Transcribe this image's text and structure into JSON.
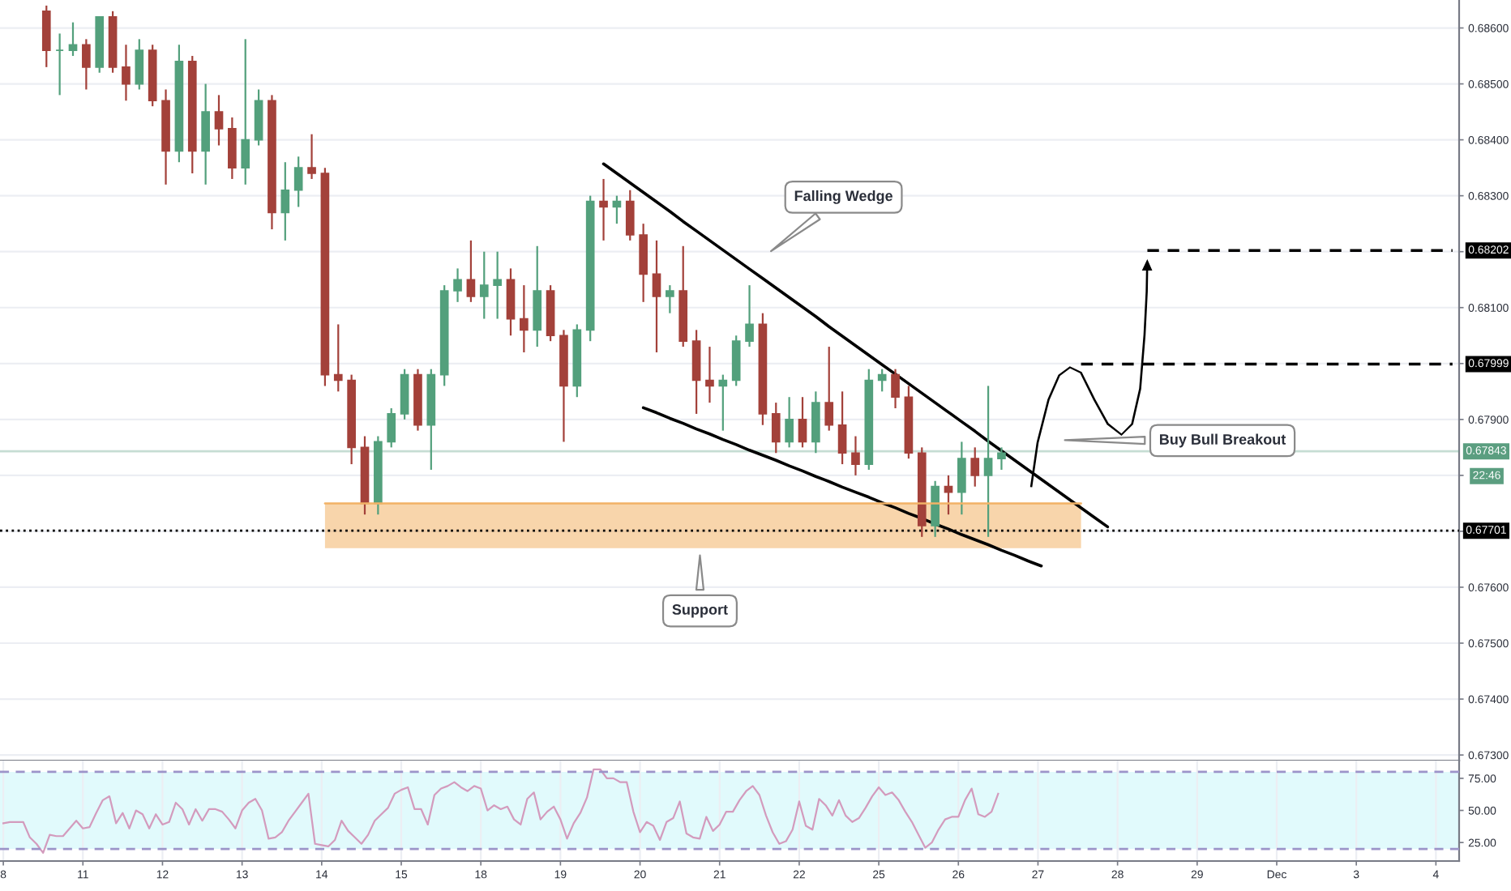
{
  "chart_data": [
    {
      "type": "candlestick",
      "categories": [
        null,
        null,
        null,
        null,
        null,
        null,
        null,
        null,
        null,
        null,
        null,
        null,
        null,
        null,
        null,
        null,
        null,
        null,
        null,
        null,
        null,
        null,
        null,
        null,
        null,
        null,
        null,
        null,
        null,
        null,
        null,
        null,
        null,
        null,
        null,
        null,
        null,
        null,
        null,
        null,
        null,
        null,
        null,
        null,
        null,
        null,
        null,
        null,
        null,
        null,
        null,
        null,
        null,
        null,
        null,
        null,
        null,
        null,
        null,
        null,
        null,
        null,
        null,
        null,
        null,
        null,
        null,
        null,
        null,
        null,
        null,
        null,
        null,
        null,
        null,
        null,
        null,
        null,
        null,
        null,
        null,
        null,
        null,
        null,
        null,
        null,
        null,
        null,
        null,
        null,
        null,
        null,
        null,
        null,
        null,
        null,
        null,
        null,
        null,
        null,
        null,
        null,
        null,
        null,
        null,
        null,
        null,
        null,
        null,
        null
      ],
      "ohlc": [
        null,
        null,
        null,
        [
          0.6863,
          0.6864,
          0.6853,
          0.6856
        ],
        [
          0.6856,
          0.6859,
          0.6848,
          0.6856
        ],
        [
          0.6856,
          0.6861,
          0.6855,
          0.6857
        ],
        [
          0.6857,
          0.6858,
          0.6849,
          0.6853
        ],
        [
          0.6853,
          0.6862,
          0.6852,
          0.6862
        ],
        [
          0.6862,
          0.6863,
          0.6852,
          0.6853
        ],
        [
          0.6853,
          0.6857,
          0.6847,
          0.685
        ],
        [
          0.685,
          0.6858,
          0.6849,
          0.6856
        ],
        [
          0.6856,
          0.6857,
          0.6846,
          0.6847
        ],
        [
          0.6847,
          0.6849,
          0.6832,
          0.6838
        ],
        [
          0.6838,
          0.6857,
          0.6836,
          0.6854
        ],
        [
          0.6854,
          0.6855,
          0.6834,
          0.6838
        ],
        [
          0.6838,
          0.685,
          0.6832,
          0.6845
        ],
        [
          0.6845,
          0.6848,
          0.6839,
          0.6842
        ],
        [
          0.6842,
          0.6844,
          0.6833,
          0.6835
        ],
        [
          0.6835,
          0.6858,
          0.6832,
          0.684
        ],
        [
          0.684,
          0.6849,
          0.6839,
          0.6847
        ],
        [
          0.6847,
          0.6848,
          0.6824,
          0.6827
        ],
        [
          0.6827,
          0.6836,
          0.6822,
          0.6831
        ],
        [
          0.6831,
          0.6837,
          0.6828,
          0.6835
        ],
        [
          0.6835,
          0.6841,
          0.6833,
          0.6834
        ],
        [
          0.6834,
          0.6835,
          0.6796,
          0.6798
        ],
        [
          0.6798,
          0.6807,
          0.6795,
          0.6797
        ],
        [
          0.6797,
          0.6798,
          0.6782,
          0.6785
        ],
        [
          0.6785,
          0.6787,
          0.6773,
          0.6775
        ],
        [
          0.6775,
          0.6787,
          0.6773,
          0.6786
        ],
        [
          0.6786,
          0.6792,
          0.6785,
          0.6791
        ],
        [
          0.6791,
          0.6799,
          0.679,
          0.6798
        ],
        [
          0.6798,
          0.6799,
          0.6788,
          0.6789
        ],
        [
          0.6789,
          0.6799,
          0.6781,
          0.6798
        ],
        [
          0.6798,
          0.6814,
          0.6796,
          0.6813
        ],
        [
          0.6813,
          0.6817,
          0.6811,
          0.6815
        ],
        [
          0.6815,
          0.6822,
          0.6811,
          0.6812
        ],
        [
          0.6812,
          0.682,
          0.6808,
          0.6814
        ],
        [
          0.6814,
          0.682,
          0.6808,
          0.6815
        ],
        [
          0.6815,
          0.6817,
          0.6805,
          0.6808
        ],
        [
          0.6808,
          0.6814,
          0.6802,
          0.6806
        ],
        [
          0.6806,
          0.6821,
          0.6803,
          0.6813
        ],
        [
          0.6813,
          0.6814,
          0.6804,
          0.6805
        ],
        [
          0.6805,
          0.6806,
          0.6786,
          0.6796
        ],
        [
          0.6796,
          0.6807,
          0.6794,
          0.6806
        ],
        [
          0.6806,
          0.683,
          0.6804,
          0.6829
        ],
        [
          0.6829,
          0.6833,
          0.6822,
          0.6828
        ],
        [
          0.6828,
          0.683,
          0.6825,
          0.6829
        ],
        [
          0.6829,
          0.6831,
          0.6822,
          0.6823
        ],
        [
          0.6823,
          0.6825,
          0.6811,
          0.6816
        ],
        [
          0.6816,
          0.6822,
          0.6802,
          0.6812
        ],
        [
          0.6812,
          0.6814,
          0.6809,
          0.6813
        ],
        [
          0.6813,
          0.6821,
          0.6803,
          0.6804
        ],
        [
          0.6804,
          0.6806,
          0.6791,
          0.6797
        ],
        [
          0.6797,
          0.6803,
          0.6793,
          0.6796
        ],
        [
          0.6796,
          0.6798,
          0.6788,
          0.6797
        ],
        [
          0.6797,
          0.6805,
          0.6796,
          0.6804
        ],
        [
          0.6804,
          0.6814,
          0.6803,
          0.6807
        ],
        [
          0.6807,
          0.6809,
          0.6789,
          0.6791
        ],
        [
          0.6791,
          0.6793,
          0.6784,
          0.6786
        ],
        [
          0.6786,
          0.6794,
          0.6785,
          0.679
        ],
        [
          0.679,
          0.6794,
          0.6785,
          0.6786
        ],
        [
          0.6786,
          0.6795,
          0.6784,
          0.6793
        ],
        [
          0.6793,
          0.6803,
          0.6788,
          0.6789
        ],
        [
          0.6789,
          0.6795,
          0.6782,
          0.6784
        ],
        [
          0.6784,
          0.6787,
          0.678,
          0.6782
        ],
        [
          0.6782,
          0.6799,
          0.6781,
          0.6797
        ],
        [
          0.6797,
          0.6799,
          0.6795,
          0.6798
        ],
        [
          0.6798,
          0.6799,
          0.6792,
          0.6794
        ],
        [
          0.6794,
          0.6796,
          0.6783,
          0.6784
        ],
        [
          0.6784,
          0.6785,
          0.6769,
          0.6771
        ],
        [
          0.6771,
          0.6779,
          0.6769,
          0.6778
        ],
        [
          0.6778,
          0.678,
          0.6773,
          0.6777
        ],
        [
          0.6777,
          0.6786,
          0.6773,
          0.6783
        ],
        [
          0.6783,
          0.6785,
          0.6778,
          0.678
        ],
        [
          0.678,
          0.6796,
          0.6769,
          0.6783
        ],
        [
          0.6783,
          0.6785,
          0.6781,
          0.6784
        ],
        null,
        null,
        null,
        null,
        null,
        null,
        null,
        null,
        null,
        null,
        null,
        null,
        null,
        null,
        null,
        null,
        null,
        null,
        null,
        null,
        null,
        null,
        null,
        null,
        null,
        null,
        null,
        null,
        null,
        null,
        null,
        null,
        null,
        null
      ],
      "colors": [
        null,
        null,
        null,
        "#a3413a",
        "#53a07c",
        "#53a07c",
        "#a3413a",
        "#53a07c",
        "#a3413a",
        "#a3413a",
        "#53a07c",
        "#a3413a",
        "#a3413a",
        "#53a07c",
        "#a3413a",
        "#53a07c",
        "#a3413a",
        "#a3413a",
        "#53a07c",
        "#53a07c",
        "#a3413a",
        "#53a07c",
        "#53a07c",
        "#a3413a",
        "#a3413a",
        "#a3413a",
        "#a3413a",
        "#a3413a",
        "#53a07c",
        "#53a07c",
        "#53a07c",
        "#a3413a",
        "#53a07c",
        "#53a07c",
        "#53a07c",
        "#a3413a",
        "#53a07c",
        "#53a07c",
        "#a3413a",
        "#a3413a",
        "#53a07c",
        "#a3413a",
        "#a3413a",
        "#53a07c",
        "#53a07c",
        "#a3413a",
        "#53a07c",
        "#a3413a",
        "#a3413a",
        "#a3413a",
        "#53a07c",
        "#a3413a",
        "#a3413a",
        "#a3413a",
        "#53a07c",
        "#53a07c",
        "#53a07c",
        "#a3413a",
        "#a3413a",
        "#53a07c",
        "#a3413a",
        "#53a07c",
        "#a3413a",
        "#a3413a",
        "#a3413a",
        "#53a07c",
        "#53a07c",
        "#a3413a",
        "#a3413a",
        "#a3413a",
        "#53a07c",
        "#a3413a",
        "#53a07c",
        "#a3413a",
        "#53a07c",
        "#53a07c",
        null,
        null,
        null,
        null,
        null,
        null,
        null,
        null,
        null,
        null,
        null,
        null,
        null,
        null,
        null,
        null,
        null,
        null,
        null,
        null,
        null,
        null,
        null,
        null,
        null,
        null,
        null,
        null,
        null,
        null,
        null,
        null,
        null,
        null
      ],
      "series": [
        {
          "type": "line",
          "color": "#000000",
          "values": [
            null,
            null,
            null,
            null,
            null,
            null,
            null,
            null,
            null,
            null,
            null,
            null,
            null,
            null,
            null,
            null,
            null,
            null,
            null,
            null,
            null,
            null,
            null,
            null,
            null,
            null,
            null,
            null,
            null,
            null,
            null,
            null,
            null,
            null,
            null,
            null,
            null,
            null,
            null,
            null,
            null,
            null,
            null,
            null,
            null,
            0.68357,
            0.6834,
            0.68323,
            0.68306,
            0.68289,
            0.68272,
            0.68254,
            0.68237,
            0.6822,
            0.68203,
            0.68186,
            0.68169,
            0.68152,
            0.68135,
            0.68118,
            0.68101,
            0.68084,
            0.68066,
            0.68049,
            0.68032,
            0.68015,
            0.67998,
            0.67981,
            0.67964,
            0.67947,
            0.6793,
            0.67913,
            0.67896,
            0.67879,
            0.67861,
            0.67844,
            0.67827,
            0.6781,
            0.67793,
            0.67776,
            0.67759,
            0.67742,
            0.67725,
            0.67708,
            null,
            null,
            null,
            null,
            null,
            null,
            null,
            null,
            null,
            null,
            null,
            null,
            null,
            null,
            null,
            null,
            null,
            null,
            null,
            null,
            null,
            null,
            null,
            null,
            null,
            null
          ]
        },
        {
          "type": "line",
          "color": "#000000",
          "values": [
            null,
            null,
            null,
            null,
            null,
            null,
            null,
            null,
            null,
            null,
            null,
            null,
            null,
            null,
            null,
            null,
            null,
            null,
            null,
            null,
            null,
            null,
            null,
            null,
            null,
            null,
            null,
            null,
            null,
            null,
            null,
            null,
            null,
            null,
            null,
            null,
            null,
            null,
            null,
            null,
            null,
            null,
            null,
            null,
            null,
            null,
            null,
            null,
            0.67921,
            0.67912,
            0.67902,
            0.67893,
            0.67883,
            0.67874,
            0.67864,
            0.67855,
            0.67845,
            0.67836,
            0.67827,
            0.67817,
            0.67808,
            0.67798,
            0.67789,
            0.67779,
            0.6777,
            0.67761,
            0.67751,
            0.67742,
            0.67732,
            0.67723,
            0.67713,
            0.67704,
            0.67694,
            0.67685,
            0.67676,
            0.67666,
            0.67657,
            0.67647,
            0.67638,
            null,
            null,
            null,
            null,
            null,
            null,
            null,
            null,
            null,
            null,
            null,
            null,
            null,
            null,
            null,
            null,
            null,
            null,
            null,
            null,
            null,
            null,
            null,
            null,
            null,
            null,
            null,
            null,
            null,
            null,
            null
          ]
        },
        {
          "type": "line",
          "color": "#f2b266",
          "values": [
            null,
            null,
            null,
            null,
            null,
            null,
            null,
            null,
            null,
            null,
            null,
            null,
            null,
            null,
            null,
            null,
            null,
            null,
            null,
            null,
            null,
            null,
            null,
            null,
            0.6775,
            0.6775,
            0.6775,
            0.6775,
            0.6775,
            0.6775,
            0.6775,
            0.6775,
            0.6775,
            0.6775,
            0.6775,
            0.6775,
            0.6775,
            0.6775,
            0.6775,
            0.6775,
            0.6775,
            0.6775,
            0.6775,
            0.6775,
            0.6775,
            0.6775,
            0.6775,
            0.6775,
            0.6775,
            0.6775,
            0.6775,
            0.6775,
            0.6775,
            0.6775,
            0.6775,
            0.6775,
            0.6775,
            0.6775,
            0.6775,
            0.6775,
            0.6775,
            0.6775,
            0.6775,
            0.6775,
            0.6775,
            0.6775,
            0.6775,
            0.6775,
            0.6775,
            0.6775,
            0.6775,
            0.6775,
            0.6775,
            0.6775,
            0.6775,
            0.6775,
            0.6775,
            0.6775,
            0.6775,
            0.6775,
            0.6775,
            0.6775,
            null,
            null,
            null,
            null,
            null,
            null,
            null,
            null,
            null,
            null,
            null,
            null,
            null,
            null,
            null,
            null,
            null,
            null,
            null,
            null,
            null,
            null,
            null,
            null,
            null,
            null,
            null,
            null
          ],
          "upper": [
            null,
            null,
            null,
            null,
            null,
            null,
            null,
            null,
            null,
            null,
            null,
            null,
            null,
            null,
            null,
            null,
            null,
            null,
            null,
            null,
            null,
            null,
            null,
            null,
            0.6775,
            0.6775,
            0.6775,
            0.6775,
            0.6775,
            0.6775,
            0.6775,
            0.6775,
            0.6775,
            0.6775,
            0.6775,
            0.6775,
            0.6775,
            0.6775,
            0.6775,
            0.6775,
            0.6775,
            0.6775,
            0.6775,
            0.6775,
            0.6775,
            0.6775,
            0.6775,
            0.6775,
            0.6775,
            0.6775,
            0.6775,
            0.6775,
            0.6775,
            0.6775,
            0.6775,
            0.6775,
            0.6775,
            0.6775,
            0.6775,
            0.6775,
            0.6775,
            0.6775,
            0.6775,
            0.6775,
            0.6775,
            0.6775,
            0.6775,
            0.6775,
            0.6775,
            0.6775,
            0.6775,
            0.6775,
            0.6775,
            0.6775,
            0.6775,
            0.6775,
            0.6775,
            0.6775,
            0.6775,
            0.6775,
            0.6775,
            0.6775,
            null,
            null,
            null,
            null,
            null,
            null,
            null,
            null,
            null,
            null,
            null,
            null,
            null,
            null,
            null,
            null,
            null,
            null,
            null,
            null,
            null,
            null,
            null,
            null,
            null,
            null,
            null,
            null
          ],
          "lower": [
            null,
            null,
            null,
            null,
            null,
            null,
            null,
            null,
            null,
            null,
            null,
            null,
            null,
            null,
            null,
            null,
            null,
            null,
            null,
            null,
            null,
            null,
            null,
            null,
            0.6767,
            0.6767,
            0.6767,
            0.6767,
            0.6767,
            0.6767,
            0.6767,
            0.6767,
            0.6767,
            0.6767,
            0.6767,
            0.6767,
            0.6767,
            0.6767,
            0.6767,
            0.6767,
            0.6767,
            0.6767,
            0.6767,
            0.6767,
            0.6767,
            0.6767,
            0.6767,
            0.6767,
            0.6767,
            0.6767,
            0.6767,
            0.6767,
            0.6767,
            0.6767,
            0.6767,
            0.6767,
            0.6767,
            0.6767,
            0.6767,
            0.6767,
            0.6767,
            0.6767,
            0.6767,
            0.6767,
            0.6767,
            0.6767,
            0.6767,
            0.6767,
            0.6767,
            0.6767,
            0.6767,
            0.6767,
            0.6767,
            0.6767,
            0.6767,
            0.6767,
            0.6767,
            0.6767,
            0.6767,
            0.6767,
            0.6767,
            0.6767,
            null,
            null,
            null,
            null,
            null,
            null,
            null,
            null,
            null,
            null,
            null,
            null,
            null,
            null,
            null,
            null,
            null,
            null,
            null,
            null,
            null,
            null,
            null,
            null,
            null,
            null,
            null,
            null
          ]
        },
        {
          "type": "line",
          "color": "#000000",
          "line_style": "dashed",
          "values": [
            null,
            null,
            null,
            null,
            null,
            null,
            null,
            null,
            null,
            null,
            null,
            null,
            null,
            null,
            null,
            null,
            null,
            null,
            null,
            null,
            null,
            null,
            null,
            null,
            null,
            null,
            null,
            null,
            null,
            null,
            null,
            null,
            null,
            null,
            null,
            null,
            null,
            null,
            null,
            null,
            null,
            null,
            null,
            null,
            null,
            null,
            null,
            null,
            null,
            null,
            null,
            null,
            null,
            null,
            null,
            null,
            null,
            null,
            null,
            null,
            null,
            null,
            null,
            null,
            null,
            null,
            null,
            null,
            null,
            null,
            null,
            null,
            null,
            null,
            null,
            null,
            null,
            null,
            null,
            null,
            null,
            0.67999,
            0.67999,
            0.67999,
            0.67999,
            0.67999,
            0.67999,
            0.67999,
            0.67999,
            0.67999,
            0.67999,
            0.67999,
            0.67999,
            0.67999,
            0.67999,
            0.67999,
            0.67999,
            0.67999,
            0.67999,
            0.67999,
            0.67999,
            0.67999,
            0.67999,
            0.67999,
            0.67999,
            0.67999,
            0.67999,
            0.67999,
            0.67999,
            0.67999
          ],
          "value_labels": [
            null,
            null,
            null,
            null,
            null,
            null,
            null,
            null,
            null,
            null,
            null,
            null,
            null,
            null,
            null,
            null,
            null,
            null,
            null,
            null,
            null,
            null,
            null,
            null,
            null,
            null,
            null,
            null,
            null,
            null,
            null,
            null,
            null,
            null,
            null,
            null,
            null,
            null,
            null,
            null,
            null,
            null,
            null,
            null,
            null,
            null,
            null,
            null,
            null,
            null,
            null,
            null,
            null,
            null,
            null,
            null,
            null,
            null,
            null,
            null,
            null,
            null,
            null,
            null,
            null,
            null,
            null,
            null,
            null,
            null,
            null,
            null,
            null,
            null,
            null,
            null,
            null,
            null,
            null,
            null,
            null,
            null,
            null,
            null,
            null,
            null,
            null,
            null,
            null,
            null,
            null,
            null,
            null,
            null,
            null,
            null,
            null,
            null,
            null,
            null,
            null,
            null,
            null,
            null,
            null,
            null,
            null,
            null,
            null,
            "0.67999"
          ]
        },
        {
          "type": "line",
          "color": "#000000",
          "line_style": "dashed",
          "values": [
            null,
            null,
            null,
            null,
            null,
            null,
            null,
            null,
            null,
            null,
            null,
            null,
            null,
            null,
            null,
            null,
            null,
            null,
            null,
            null,
            null,
            null,
            null,
            null,
            null,
            null,
            null,
            null,
            null,
            null,
            null,
            null,
            null,
            null,
            null,
            null,
            null,
            null,
            null,
            null,
            null,
            null,
            null,
            null,
            null,
            null,
            null,
            null,
            null,
            null,
            null,
            null,
            null,
            null,
            null,
            null,
            null,
            null,
            null,
            null,
            null,
            null,
            null,
            null,
            null,
            null,
            null,
            null,
            null,
            null,
            null,
            null,
            null,
            null,
            null,
            null,
            null,
            null,
            null,
            null,
            null,
            null,
            null,
            null,
            null,
            null,
            0.68202,
            0.68202,
            0.68202,
            0.68202,
            0.68202,
            0.68202,
            0.68202,
            0.68202,
            0.68202,
            0.68202,
            0.68202,
            0.68202,
            0.68202,
            0.68202,
            0.68202,
            0.68202,
            0.68202,
            0.68202,
            0.68202,
            0.68202,
            0.68202,
            0.68202,
            0.68202,
            0.68202
          ],
          "value_labels": [
            null,
            null,
            null,
            null,
            null,
            null,
            null,
            null,
            null,
            null,
            null,
            null,
            null,
            null,
            null,
            null,
            null,
            null,
            null,
            null,
            null,
            null,
            null,
            null,
            null,
            null,
            null,
            null,
            null,
            null,
            null,
            null,
            null,
            null,
            null,
            null,
            null,
            null,
            null,
            null,
            null,
            null,
            null,
            null,
            null,
            null,
            null,
            null,
            null,
            null,
            null,
            null,
            null,
            null,
            null,
            null,
            null,
            null,
            null,
            null,
            null,
            null,
            null,
            null,
            null,
            null,
            null,
            null,
            null,
            null,
            null,
            null,
            null,
            null,
            null,
            null,
            null,
            null,
            null,
            null,
            null,
            null,
            null,
            null,
            null,
            null,
            null,
            null,
            null,
            null,
            null,
            null,
            null,
            null,
            null,
            null,
            null,
            null,
            null,
            null,
            null,
            null,
            null,
            null,
            null,
            null,
            null,
            null,
            null,
            "0.68202"
          ]
        }
      ],
      "ref_lines": [
        {
          "axis": "y",
          "value": 0.67701,
          "label": "0.67701",
          "color": "#000000",
          "line_style": "dotted"
        },
        {
          "axis": "y",
          "value": 0.67843,
          "label": "0.67843",
          "color": "#5b9e80",
          "line_style": "solid"
        }
      ],
      "annotations": [
        "Falling Wedge",
        "Support",
        "Buy Bull Breakout",
        "22:46"
      ],
      "ylim": [
        0.6729,
        0.6865
      ],
      "yticks": [
        {
          "value": 0.673,
          "label": "0.67300"
        },
        {
          "value": 0.674,
          "label": "0.67400"
        },
        {
          "value": 0.675,
          "label": "0.67500"
        },
        {
          "value": 0.676,
          "label": "0.67600"
        },
        {
          "value": 0.677,
          "label": null
        },
        {
          "value": 0.678,
          "label": null
        },
        {
          "value": 0.679,
          "label": "0.67900"
        },
        {
          "value": 0.68,
          "label": null
        },
        {
          "value": 0.681,
          "label": "0.68100"
        },
        {
          "value": 0.682,
          "label": null
        },
        {
          "value": 0.683,
          "label": "0.68300"
        },
        {
          "value": 0.684,
          "label": "0.68400"
        },
        {
          "value": 0.685,
          "label": "0.68500"
        },
        {
          "value": 0.686,
          "label": "0.68600"
        }
      ],
      "grid": "y"
    },
    {
      "type": "line",
      "categories": [
        "8",
        null,
        null,
        null,
        null,
        null,
        null,
        null,
        null,
        null,
        null,
        null,
        "11",
        null,
        null,
        null,
        null,
        null,
        null,
        null,
        null,
        null,
        null,
        null,
        "12",
        null,
        null,
        null,
        null,
        null,
        null,
        null,
        null,
        null,
        null,
        null,
        "13",
        null,
        null,
        null,
        null,
        null,
        null,
        null,
        null,
        null,
        null,
        null,
        "14",
        null,
        null,
        null,
        null,
        null,
        null,
        null,
        null,
        null,
        null,
        null,
        "15",
        null,
        null,
        null,
        null,
        null,
        null,
        null,
        null,
        null,
        null,
        null,
        "18",
        null,
        null,
        null,
        null,
        null,
        null,
        null,
        null,
        null,
        null,
        null,
        "19",
        null,
        null,
        null,
        null,
        null,
        null,
        null,
        null,
        null,
        null,
        null,
        "20",
        null,
        null,
        null,
        null,
        null,
        null,
        null,
        null,
        null,
        null,
        null,
        "21",
        null,
        null,
        null,
        null,
        null,
        null,
        null,
        null,
        null,
        null,
        null,
        "22",
        null,
        null,
        null,
        null,
        null,
        null,
        null,
        null,
        null,
        null,
        null,
        "25",
        null,
        null,
        null,
        null,
        null,
        null,
        null,
        null,
        null,
        null,
        null,
        "26",
        null,
        null,
        null,
        null,
        null,
        null,
        null,
        null,
        null,
        null,
        null,
        "27",
        null,
        null,
        null,
        null,
        null,
        null,
        null,
        null,
        null,
        null,
        null,
        "28",
        null,
        null,
        null,
        null,
        null,
        null,
        null,
        null,
        null,
        null,
        null,
        "29",
        null,
        null,
        null,
        null,
        null,
        null,
        null,
        null,
        null,
        null,
        null,
        "Dec",
        null,
        null,
        null,
        null,
        null,
        null,
        null,
        null,
        null,
        null,
        null,
        "3",
        null,
        null,
        null,
        null,
        null,
        null,
        null,
        null,
        null,
        null,
        null,
        "4",
        null,
        null,
        null
      ],
      "values": [
        40,
        41,
        41,
        41,
        29,
        24,
        17,
        31,
        30,
        30,
        36,
        42,
        36,
        37,
        48,
        58,
        61,
        40,
        48,
        36,
        50,
        47,
        36,
        47,
        39,
        41,
        56,
        51,
        39,
        51,
        42,
        51,
        51,
        49,
        43,
        36,
        50,
        56,
        59,
        50,
        28,
        29,
        33,
        42,
        49,
        56,
        63,
        24,
        23,
        22,
        27,
        42,
        34,
        29,
        24,
        31,
        42,
        47,
        52,
        63,
        66,
        68,
        51,
        51,
        39,
        62,
        67,
        69,
        72,
        68,
        65,
        69,
        67,
        50,
        54,
        51,
        53,
        43,
        39,
        59,
        64,
        43,
        49,
        53,
        43,
        28,
        40,
        48,
        60,
        82,
        82,
        75,
        75,
        72,
        72,
        49,
        33,
        41,
        38,
        27,
        41,
        44,
        57,
        32,
        29,
        28,
        45,
        34,
        39,
        49,
        49,
        58,
        65,
        69,
        62,
        46,
        33,
        24,
        26,
        35,
        57,
        38,
        35,
        59,
        54,
        46,
        58,
        46,
        41,
        44,
        52,
        61,
        68,
        62,
        64,
        58,
        49,
        41,
        31,
        21,
        25,
        35,
        43,
        45,
        45,
        58,
        67,
        47,
        45,
        49,
        63,
        null,
        null,
        null,
        null,
        null,
        null,
        null,
        null,
        null,
        null,
        null,
        null,
        null,
        null,
        null,
        null,
        null,
        null,
        null,
        null,
        null,
        null,
        null,
        null,
        null,
        null,
        null,
        null,
        null,
        null,
        null,
        null,
        null,
        null,
        null,
        null,
        null,
        null,
        null,
        null,
        null,
        null,
        null,
        null,
        null,
        null,
        null,
        null,
        null,
        null,
        null,
        null,
        null,
        null,
        null,
        null,
        null,
        null,
        null,
        null,
        null,
        null,
        null,
        null,
        null,
        null,
        null,
        null,
        null
      ],
      "color": "#d39bbd",
      "bands": [
        {
          "axis": "y",
          "from": 20,
          "to": 80,
          "color": "#e1fafc"
        }
      ],
      "ref_lines": [
        {
          "axis": "y",
          "value": 80,
          "color": "#9c94c9",
          "line_style": "dashed"
        },
        {
          "axis": "y",
          "value": 20,
          "color": "#9c94c9",
          "line_style": "dashed"
        }
      ],
      "ylim": [
        10.6,
        88.8
      ],
      "yticks": [
        {
          "value": 25,
          "label": "25.00"
        },
        {
          "value": 50,
          "label": "50.00"
        },
        {
          "value": 75,
          "label": "75.00"
        }
      ],
      "grid": "x"
    }
  ]
}
